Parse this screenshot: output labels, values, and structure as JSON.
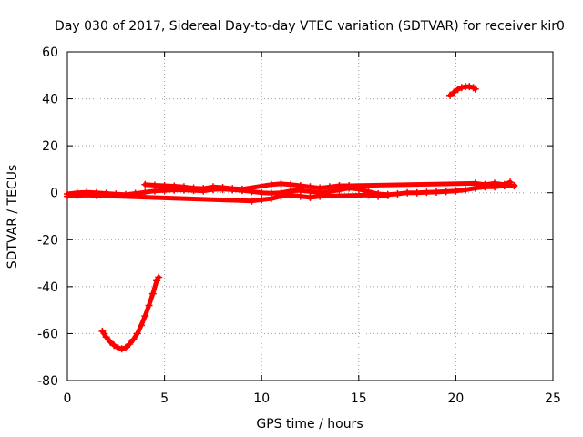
{
  "chart_data": {
    "type": "scatter",
    "title": "Day 030 of 2017, Sidereal Day-to-day VTEC variation (SDTVAR) for receiver kir0",
    "xlabel": "GPS time / hours",
    "ylabel": "SDTVAR / TECUs",
    "xlim": [
      0,
      25
    ],
    "ylim": [
      -80,
      60
    ],
    "xticks": [
      0,
      5,
      10,
      15,
      20,
      25
    ],
    "yticks": [
      -80,
      -60,
      -40,
      -20,
      0,
      20,
      40,
      60
    ],
    "grid": true,
    "marker": "+",
    "color": "#ff0000",
    "series": [
      {
        "name": "main band",
        "points": [
          [
            0.0,
            -0.5
          ],
          [
            0.5,
            0.0
          ],
          [
            1.0,
            0.2
          ],
          [
            1.5,
            0.0
          ],
          [
            2.0,
            -0.3
          ],
          [
            2.5,
            -0.6
          ],
          [
            3.0,
            -0.8
          ],
          [
            3.5,
            -0.3
          ],
          [
            4.0,
            0.2
          ],
          [
            4.5,
            0.8
          ],
          [
            5.0,
            1.0
          ],
          [
            5.5,
            1.2
          ],
          [
            6.0,
            1.2
          ],
          [
            6.5,
            1.0
          ],
          [
            7.0,
            0.8
          ],
          [
            7.5,
            1.4
          ],
          [
            8.0,
            1.5
          ],
          [
            8.5,
            1.3
          ],
          [
            9.0,
            1.0
          ],
          [
            9.5,
            0.5
          ],
          [
            10.0,
            0.0
          ],
          [
            10.5,
            -0.2
          ],
          [
            11.0,
            0.0
          ],
          [
            11.5,
            0.8
          ],
          [
            12.0,
            1.0
          ],
          [
            12.5,
            0.5
          ],
          [
            13.0,
            0.0
          ],
          [
            13.5,
            0.5
          ],
          [
            14.0,
            1.2
          ],
          [
            14.5,
            2.0
          ],
          [
            15.0,
            1.5
          ],
          [
            15.5,
            0.5
          ],
          [
            16.0,
            -0.5
          ],
          [
            16.5,
            -0.8
          ],
          [
            17.0,
            -0.5
          ],
          [
            17.5,
            0.0
          ],
          [
            18.0,
            0.0
          ],
          [
            18.5,
            0.2
          ],
          [
            19.0,
            0.3
          ],
          [
            19.5,
            0.5
          ],
          [
            20.0,
            0.8
          ],
          [
            20.5,
            1.2
          ],
          [
            21.0,
            2.0
          ],
          [
            21.5,
            2.5
          ],
          [
            22.0,
            2.5
          ],
          [
            22.5,
            3.0
          ],
          [
            23.0,
            3.0
          ]
        ]
      },
      {
        "name": "upper band segment",
        "points": [
          [
            4.0,
            3.5
          ],
          [
            4.5,
            3.2
          ],
          [
            5.0,
            3.0
          ],
          [
            5.5,
            2.8
          ],
          [
            6.0,
            2.5
          ],
          [
            6.5,
            2.0
          ],
          [
            7.0,
            1.8
          ],
          [
            7.5,
            2.5
          ],
          [
            8.0,
            2.2
          ],
          [
            8.5,
            1.8
          ],
          [
            9.0,
            1.5
          ],
          [
            10.5,
            3.5
          ],
          [
            11.0,
            3.8
          ],
          [
            11.5,
            3.5
          ],
          [
            12.0,
            3.0
          ],
          [
            12.5,
            2.5
          ],
          [
            13.0,
            2.0
          ],
          [
            13.5,
            2.5
          ],
          [
            14.0,
            3.0
          ],
          [
            14.5,
            3.0
          ],
          [
            21.0,
            4.0
          ],
          [
            21.5,
            3.5
          ],
          [
            22.0,
            4.0
          ],
          [
            22.5,
            3.5
          ],
          [
            22.8,
            4.5
          ]
        ]
      },
      {
        "name": "lower band segment",
        "points": [
          [
            0.0,
            -1.5
          ],
          [
            0.5,
            -1.2
          ],
          [
            1.0,
            -1.0
          ],
          [
            1.5,
            -1.2
          ],
          [
            9.5,
            -3.5
          ],
          [
            10.0,
            -3.0
          ],
          [
            10.5,
            -2.5
          ],
          [
            11.0,
            -1.5
          ],
          [
            11.5,
            -1.0
          ],
          [
            12.0,
            -1.5
          ],
          [
            12.5,
            -2.0
          ],
          [
            13.0,
            -1.5
          ],
          [
            15.5,
            -1.0
          ],
          [
            16.0,
            -1.5
          ],
          [
            16.5,
            -1.2
          ]
        ]
      },
      {
        "name": "dip arc",
        "points": [
          [
            1.8,
            -59
          ],
          [
            2.0,
            -61.5
          ],
          [
            2.2,
            -63.5
          ],
          [
            2.4,
            -65
          ],
          [
            2.6,
            -66
          ],
          [
            2.8,
            -66.5
          ],
          [
            3.0,
            -66
          ],
          [
            3.2,
            -64.5
          ],
          [
            3.4,
            -62.5
          ],
          [
            3.6,
            -60
          ],
          [
            3.8,
            -56.5
          ],
          [
            4.0,
            -52.5
          ],
          [
            4.2,
            -48
          ],
          [
            4.4,
            -43
          ],
          [
            4.6,
            -37.5
          ],
          [
            4.7,
            -36
          ]
        ]
      },
      {
        "name": "late arc",
        "points": [
          [
            19.7,
            41.5
          ],
          [
            19.9,
            42.8
          ],
          [
            20.1,
            44.0
          ],
          [
            20.3,
            44.8
          ],
          [
            20.5,
            45.2
          ],
          [
            20.7,
            45.2
          ],
          [
            20.9,
            44.8
          ],
          [
            21.0,
            44.2
          ]
        ]
      }
    ]
  }
}
